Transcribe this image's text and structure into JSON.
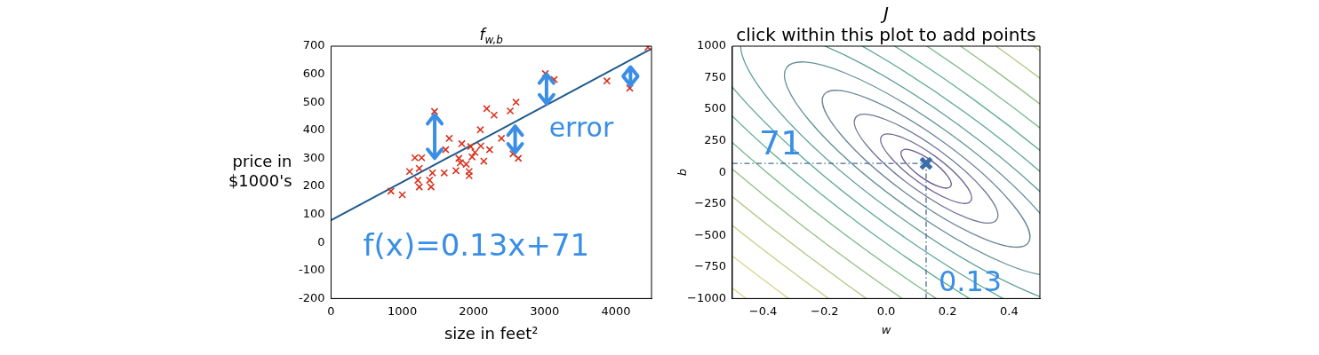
{
  "chart_data": [
    {
      "type": "scatter",
      "title": "f$_{w,b}$",
      "xlabel": "size in feet²",
      "ylabel": "price in\n$1000's",
      "xlim": [
        0,
        4500
      ],
      "xticks": [
        0,
        1000,
        2000,
        3000,
        4000
      ],
      "ylim": [
        -200,
        700
      ],
      "yticks": [
        -200,
        -100,
        0,
        100,
        200,
        300,
        400,
        500,
        600,
        700
      ],
      "grid": false,
      "series": [
        {
          "color": "#d8321e",
          "marker": "cross",
          "x": [
            840,
            1000,
            1453,
            1177,
            1272,
            1103,
            1239,
            1219,
            1239,
            1383,
            1404,
            1424,
            1589,
            1609,
            1659,
            1836,
            1795,
            1815,
            1754,
            1898,
            1939,
            1939,
            1960,
            1980,
            2021,
            2103,
            2145,
            2227,
            2096,
            2186,
            2289,
            2392,
            2516,
            2597,
            2556,
            2630,
            3009,
            3133,
            3874,
            4195,
            4450
          ],
          "values": [
            183,
            170,
            467,
            302,
            302,
            253,
            264,
            222,
            198,
            222,
            198,
            248,
            248,
            331,
            371,
            352,
            300,
            284,
            256,
            279,
            253,
            238,
            342,
            305,
            321,
            344,
            290,
            331,
            402,
            477,
            454,
            371,
            469,
            500,
            316,
            300,
            602,
            581,
            576,
            550,
            696
          ]
        },
        {
          "type": "line",
          "color": "#1f5a8c",
          "marker": "none",
          "x": [
            0,
            4500
          ],
          "values": [
            79,
            691
          ]
        }
      ],
      "annotations": [
        "error",
        "f(x)=0.13x+71"
      ]
    },
    {
      "type": "scatter",
      "title": "J",
      "subtitle": "click within this plot to add points",
      "xlabel": "w",
      "ylabel": "b",
      "xlim": [
        -0.5,
        0.5
      ],
      "xticks": [
        {
          "value": -0.4,
          "label": "−0.4"
        },
        {
          "value": -0.2,
          "label": "−0.2"
        },
        {
          "value": 0,
          "label": "0.0"
        },
        0.2,
        0.4
      ],
      "ylim": [
        -1000,
        1000
      ],
      "yticks": [
        {
          "value": -1000,
          "label": "−1000"
        },
        {
          "value": -750,
          "label": "−750"
        },
        {
          "value": -500,
          "label": "−500"
        },
        {
          "value": -250,
          "label": "−250"
        },
        0,
        250,
        500,
        750,
        1000
      ],
      "grid": false,
      "series": [
        {
          "color": "#3a6ea8",
          "marker": "cross",
          "x": [
            0.13
          ],
          "values": [
            71
          ]
        }
      ],
      "ref_lines": [
        {
          "axis": "y",
          "value": 71,
          "label": "71",
          "color": "#4a6a98",
          "line_style": "dashed"
        },
        {
          "axis": "x",
          "value": 0.13,
          "label": "0.13",
          "color": "#4a6a98",
          "line_style": "dashed"
        }
      ]
    }
  ]
}
